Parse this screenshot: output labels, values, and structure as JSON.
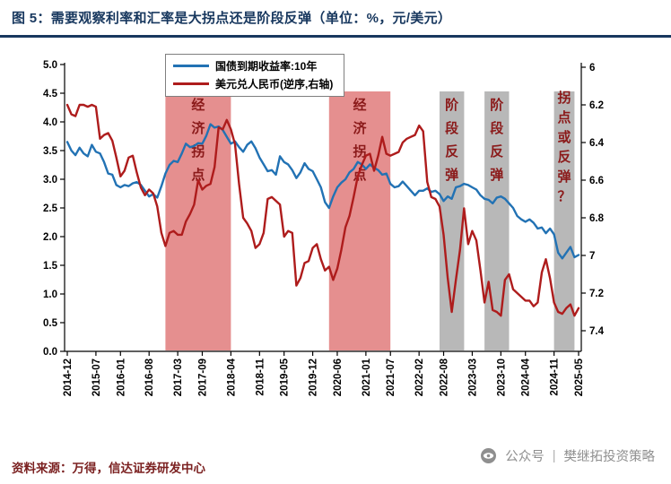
{
  "title": "图 5：需要观察利率和汇率是大拐点还是阶段反弹（单位：%，元/美元）",
  "legend": [
    {
      "label": "国债到期收益率:10年",
      "color": "#2272b4"
    },
    {
      "label": "美元兑人民币(逆序,右轴)",
      "color": "#ae1c1c"
    }
  ],
  "footer": {
    "source": "资料来源：万得，信达证券研发中心",
    "watermark_account": "公众号",
    "watermark_separator": "|",
    "watermark_name": "樊继拓投资策略"
  },
  "chart_data": {
    "type": "line",
    "title": "需要观察利率和汇率是大拐点还是阶段反弹",
    "unit": "%, 元/美元",
    "x_unit": "month index from 2014-12 (one point per month)",
    "x_tick_indices": [
      0,
      7,
      13,
      20,
      27,
      33,
      40,
      47,
      53,
      60,
      66,
      73,
      79,
      86,
      92,
      99,
      106,
      112,
      119,
      125
    ],
    "x_tick_labels": [
      "2014-12",
      "2015-07",
      "2016-01",
      "2016-08",
      "2017-03",
      "2017-09",
      "2018-04",
      "2018-11",
      "2019-05",
      "2019-12",
      "2020-06",
      "2021-01",
      "2021-07",
      "2022-02",
      "2022-08",
      "2023-03",
      "2023-10",
      "2024-04",
      "2024-11",
      "2025-05"
    ],
    "left_axis": {
      "min": 0,
      "max": 5,
      "tick_values": [
        5,
        4.5,
        4,
        3.5,
        3,
        2.5,
        2,
        1.5,
        1,
        0.5,
        0
      ],
      "tick_labels": [
        "5.0",
        "4.5",
        "4.0",
        "3.5",
        "3.0",
        "2.5",
        "2.0",
        "1.5",
        "1.0",
        "0.5",
        "0.0"
      ]
    },
    "right_axis": {
      "min": 6,
      "max": 7.4,
      "inverted": true,
      "tick_values": [
        6,
        6.2,
        6.4,
        6.6,
        6.8,
        7,
        7.2,
        7.4
      ],
      "tick_labels": [
        "6",
        "6.2",
        "6.4",
        "6.6",
        "6.8",
        "7",
        "7.2",
        "7.4"
      ]
    },
    "grid": false,
    "legend_position": "top-center",
    "series": [
      {
        "name": "国债到期收益率:10年",
        "axis": "left",
        "color": "#2272b4",
        "values": [
          3.65,
          3.5,
          3.42,
          3.55,
          3.45,
          3.4,
          3.6,
          3.48,
          3.45,
          3.3,
          3.1,
          3.08,
          2.9,
          2.86,
          2.9,
          2.88,
          2.93,
          2.95,
          2.9,
          2.8,
          2.7,
          2.74,
          2.68,
          2.88,
          3.1,
          3.25,
          3.32,
          3.3,
          3.45,
          3.62,
          3.56,
          3.58,
          3.63,
          3.62,
          3.76,
          3.96,
          3.9,
          3.92,
          3.86,
          3.74,
          3.62,
          3.66,
          3.56,
          3.48,
          3.6,
          3.66,
          3.54,
          3.38,
          3.26,
          3.14,
          3.16,
          3.08,
          3.4,
          3.3,
          3.26,
          3.16,
          3.02,
          3.12,
          3.28,
          3.18,
          3.14,
          3.0,
          2.86,
          2.6,
          2.5,
          2.7,
          2.86,
          2.94,
          3.0,
          3.12,
          3.18,
          3.3,
          3.26,
          3.18,
          3.26,
          3.2,
          3.16,
          3.08,
          3.1,
          2.92,
          2.86,
          2.88,
          2.96,
          2.88,
          2.8,
          2.72,
          2.8,
          2.8,
          2.84,
          2.78,
          2.8,
          2.74,
          2.62,
          2.7,
          2.66,
          2.86,
          2.88,
          2.92,
          2.9,
          2.86,
          2.82,
          2.72,
          2.66,
          2.64,
          2.58,
          2.68,
          2.7,
          2.66,
          2.58,
          2.5,
          2.36,
          2.3,
          2.26,
          2.3,
          2.24,
          2.14,
          2.16,
          2.06,
          2.14,
          2.04,
          1.72,
          1.62,
          1.72,
          1.82,
          1.64,
          1.68
        ]
      },
      {
        "name": "美元兑人民币(逆序,右轴)",
        "axis": "right",
        "color": "#ae1c1c",
        "values": [
          6.2,
          6.25,
          6.26,
          6.2,
          6.2,
          6.21,
          6.2,
          6.21,
          6.38,
          6.36,
          6.35,
          6.39,
          6.48,
          6.58,
          6.55,
          6.48,
          6.47,
          6.56,
          6.64,
          6.68,
          6.65,
          6.67,
          6.74,
          6.88,
          6.95,
          6.88,
          6.87,
          6.89,
          6.89,
          6.82,
          6.78,
          6.73,
          6.6,
          6.65,
          6.63,
          6.62,
          6.53,
          6.32,
          6.33,
          6.28,
          6.33,
          6.41,
          6.62,
          6.8,
          6.83,
          6.87,
          6.96,
          6.94,
          6.88,
          6.7,
          6.69,
          6.71,
          6.73,
          6.9,
          6.87,
          6.88,
          7.16,
          7.12,
          7.04,
          7.03,
          6.96,
          6.94,
          7.02,
          7.08,
          7.06,
          7.13,
          7.07,
          6.97,
          6.85,
          6.79,
          6.69,
          6.58,
          6.52,
          6.47,
          6.46,
          6.55,
          6.47,
          6.37,
          6.46,
          6.47,
          6.46,
          6.45,
          6.4,
          6.38,
          6.37,
          6.36,
          6.31,
          6.34,
          6.61,
          6.69,
          6.7,
          6.74,
          6.89,
          7.12,
          7.3,
          7.13,
          6.97,
          6.75,
          6.94,
          6.87,
          6.92,
          7.08,
          7.25,
          7.14,
          7.29,
          7.3,
          7.32,
          7.13,
          7.1,
          7.18,
          7.2,
          7.22,
          7.24,
          7.24,
          7.27,
          7.25,
          7.09,
          7.02,
          7.12,
          7.25,
          7.3,
          7.31,
          7.28,
          7.26,
          7.32,
          7.28
        ]
      }
    ],
    "bands": [
      {
        "label": "经济拐点",
        "from_index": 24,
        "to_index": 40,
        "fill": "#e58f8f",
        "label_color": "#8b1a1a"
      },
      {
        "label": "经济拐点",
        "from_index": 64,
        "to_index": 79,
        "fill": "#e58f8f",
        "label_color": "#8b1a1a"
      },
      {
        "label": "阶段反弹",
        "from_index": 91,
        "to_index": 97,
        "fill": "#b8b8b8",
        "label_color": "#8b1a1a"
      },
      {
        "label": "阶段反弹",
        "from_index": 102,
        "to_index": 108,
        "fill": "#b8b8b8",
        "label_color": "#8b1a1a"
      },
      {
        "label": "拐点或反弹？",
        "from_index": 119,
        "to_index": 124,
        "fill": "#b8b8b8",
        "label_color": "#8b1a1a"
      }
    ]
  }
}
